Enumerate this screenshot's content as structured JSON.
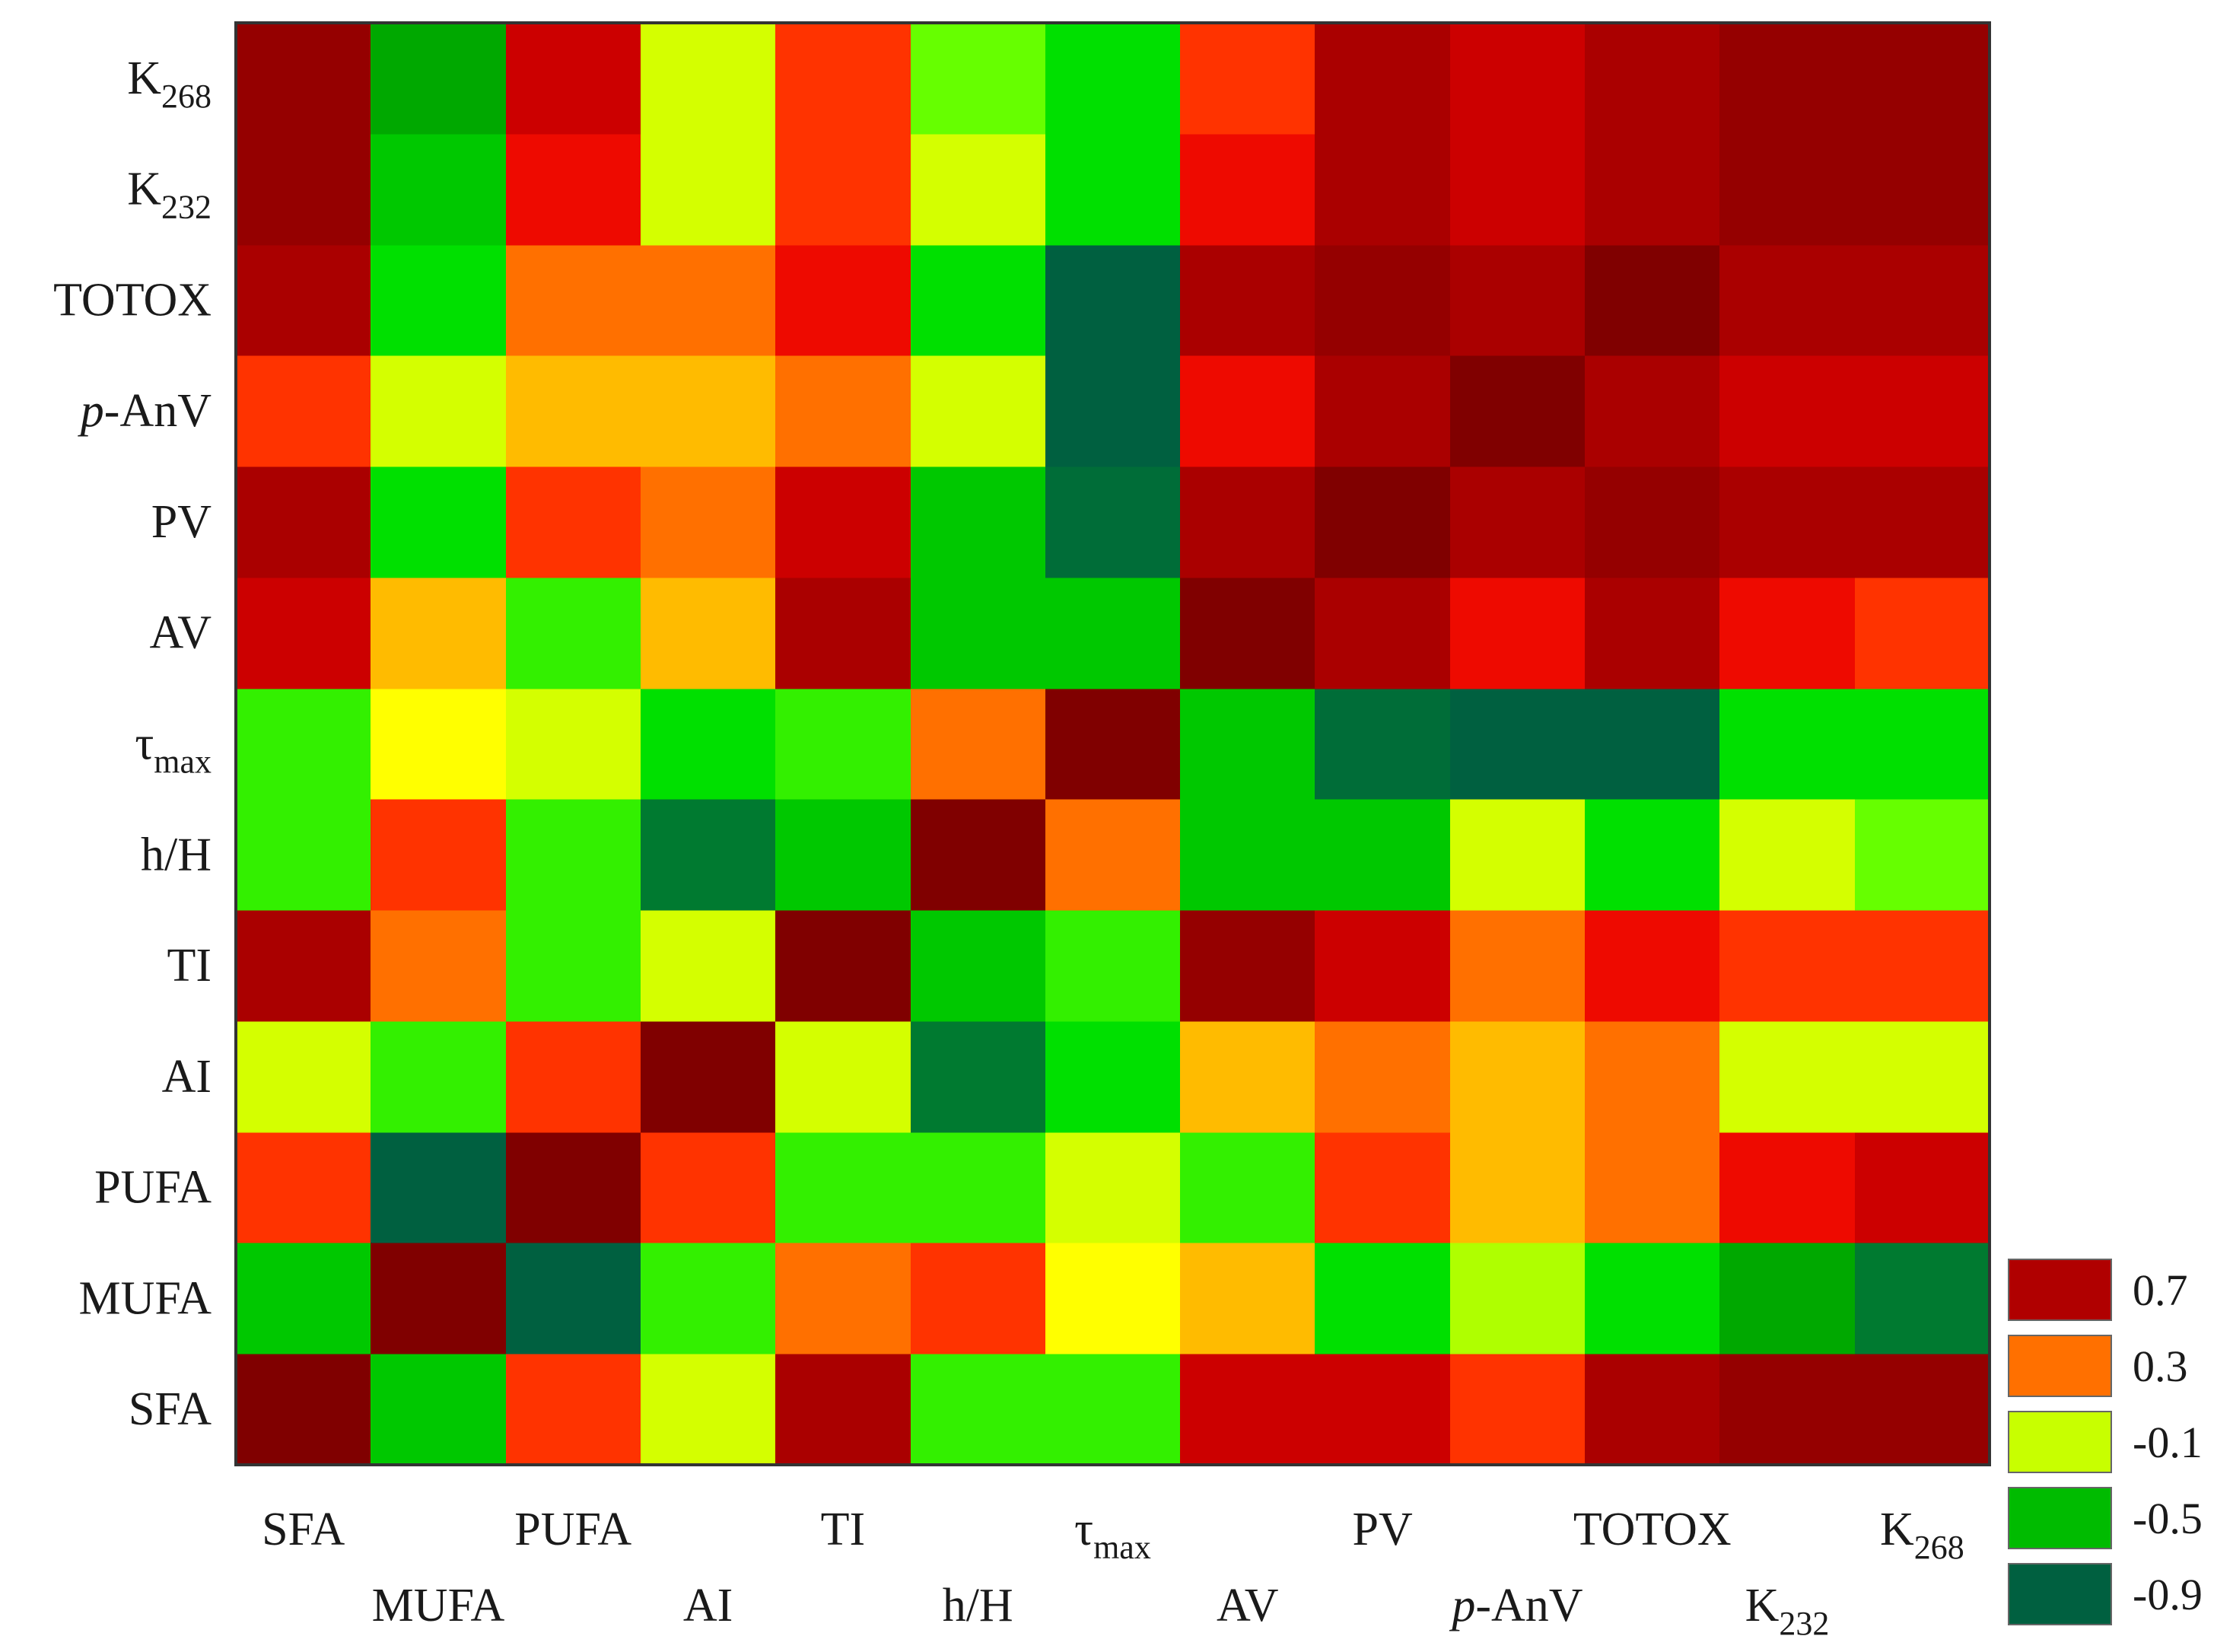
{
  "chart_data": {
    "type": "heatmap",
    "title": "",
    "variables": [
      {
        "name": "SFA",
        "base": "SFA",
        "sub": "",
        "italic_prefix": ""
      },
      {
        "name": "MUFA",
        "base": "MUFA",
        "sub": "",
        "italic_prefix": ""
      },
      {
        "name": "PUFA",
        "base": "PUFA",
        "sub": "",
        "italic_prefix": ""
      },
      {
        "name": "AI",
        "base": "AI",
        "sub": "",
        "italic_prefix": ""
      },
      {
        "name": "TI",
        "base": "TI",
        "sub": "",
        "italic_prefix": ""
      },
      {
        "name": "h/H",
        "base": "h/H",
        "sub": "",
        "italic_prefix": ""
      },
      {
        "name": "τmax",
        "base": "τ",
        "sub": "max",
        "italic_prefix": ""
      },
      {
        "name": "AV",
        "base": "AV",
        "sub": "",
        "italic_prefix": ""
      },
      {
        "name": "PV",
        "base": "PV",
        "sub": "",
        "italic_prefix": ""
      },
      {
        "name": "p-AnV",
        "base": "-AnV",
        "sub": "",
        "italic_prefix": "p"
      },
      {
        "name": "TOTOX",
        "base": "TOTOX",
        "sub": "",
        "italic_prefix": ""
      },
      {
        "name": "K232",
        "base": "K",
        "sub": "232",
        "italic_prefix": ""
      },
      {
        "name": "K268",
        "base": "K",
        "sub": "268",
        "italic_prefix": ""
      }
    ],
    "legend": {
      "title": "",
      "position": "bottom-right",
      "ticks": [
        {
          "label": "0.7",
          "color": "#b00000"
        },
        {
          "label": "0.3",
          "color": "#ff7000"
        },
        {
          "label": "-0.1",
          "color": "#c8ff00"
        },
        {
          "label": "-0.5",
          "color": "#00bb00"
        },
        {
          "label": "-0.9",
          "color": "#006040"
        }
      ]
    },
    "colorscale": [
      {
        "v": -1.0,
        "color": "#006040"
      },
      {
        "v": -0.8,
        "color": "#007a30"
      },
      {
        "v": -0.6,
        "color": "#00a800"
      },
      {
        "v": -0.45,
        "color": "#00c800"
      },
      {
        "v": -0.35,
        "color": "#00e000"
      },
      {
        "v": -0.25,
        "color": "#66ff00"
      },
      {
        "v": -0.1,
        "color": "#d4ff00"
      },
      {
        "v": 0.0,
        "color": "#ffff00"
      },
      {
        "v": 0.15,
        "color": "#ffbb00"
      },
      {
        "v": 0.3,
        "color": "#ff7000"
      },
      {
        "v": 0.45,
        "color": "#ff3300"
      },
      {
        "v": 0.55,
        "color": "#ee0a00"
      },
      {
        "v": 0.7,
        "color": "#cc0000"
      },
      {
        "v": 0.8,
        "color": "#aa0000"
      },
      {
        "v": 1.0,
        "color": "#800000"
      }
    ],
    "matrix": [
      [
        1.0,
        -0.45,
        0.45,
        -0.1,
        0.8,
        -0.3,
        -0.3,
        0.7,
        0.7,
        0.45,
        0.8,
        0.9,
        0.9
      ],
      [
        -0.45,
        1.0,
        -1.0,
        -0.3,
        0.3,
        0.45,
        0.0,
        0.15,
        -0.35,
        -0.15,
        -0.35,
        -0.6,
        -0.8
      ],
      [
        0.45,
        -1.0,
        1.0,
        0.45,
        -0.3,
        -0.3,
        -0.1,
        -0.3,
        0.45,
        0.15,
        0.3,
        0.55,
        0.7
      ],
      [
        -0.1,
        -0.3,
        0.45,
        1.0,
        -0.1,
        -0.8,
        -0.35,
        0.15,
        0.3,
        0.15,
        0.3,
        -0.1,
        -0.1
      ],
      [
        0.8,
        0.3,
        -0.3,
        -0.1,
        1.0,
        -0.45,
        -0.3,
        0.9,
        0.7,
        0.3,
        0.55,
        0.45,
        0.45
      ],
      [
        -0.3,
        0.45,
        -0.3,
        -0.8,
        -0.45,
        1.0,
        0.3,
        -0.45,
        -0.45,
        -0.1,
        -0.35,
        -0.1,
        -0.25
      ],
      [
        -0.3,
        0.0,
        -0.1,
        -0.35,
        -0.3,
        0.3,
        1.0,
        -0.45,
        -0.9,
        -1.0,
        -1.0,
        -0.35,
        -0.35
      ],
      [
        0.7,
        0.15,
        -0.3,
        0.15,
        0.8,
        -0.45,
        -0.45,
        1.0,
        0.8,
        0.55,
        0.8,
        0.55,
        0.45
      ],
      [
        0.8,
        -0.35,
        0.45,
        0.3,
        0.7,
        -0.45,
        -0.9,
        0.8,
        1.0,
        0.8,
        0.9,
        0.8,
        0.8
      ],
      [
        0.45,
        -0.1,
        0.15,
        0.15,
        0.3,
        -0.1,
        -1.0,
        0.55,
        0.8,
        1.0,
        0.8,
        0.7,
        0.7
      ],
      [
        0.8,
        -0.35,
        0.3,
        0.3,
        0.55,
        -0.35,
        -1.0,
        0.8,
        0.9,
        0.8,
        1.0,
        0.8,
        0.8
      ],
      [
        0.9,
        -0.45,
        0.55,
        -0.1,
        0.45,
        -0.1,
        -0.35,
        0.55,
        0.8,
        0.7,
        0.8,
        0.9,
        0.9
      ],
      [
        0.9,
        -0.6,
        0.7,
        -0.1,
        0.45,
        -0.25,
        -0.35,
        0.45,
        0.8,
        0.7,
        0.8,
        0.9,
        0.9
      ]
    ]
  }
}
